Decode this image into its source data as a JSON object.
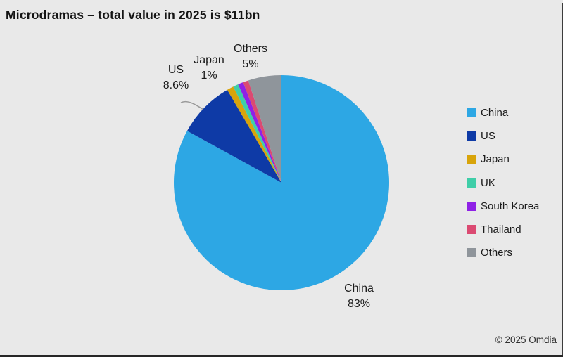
{
  "title": "Microdramas – total value in 2025 is $11bn",
  "copyright": "© 2025 Omdia",
  "chart_data": {
    "type": "pie",
    "title": "Microdramas – total value in 2025 is $11bn",
    "total_value": "$11bn",
    "year": "2025",
    "start_angle_deg": -90,
    "direction": "clockwise",
    "legend_position": "right",
    "series": [
      {
        "name": "China",
        "value": 83,
        "color": "#2DA7E4"
      },
      {
        "name": "US",
        "value": 8.6,
        "color": "#0E3AA6"
      },
      {
        "name": "Japan",
        "value": 1,
        "color": "#D8A40A"
      },
      {
        "name": "UK",
        "value": 0.8,
        "color": "#3FCEA8"
      },
      {
        "name": "South Korea",
        "value": 0.8,
        "color": "#8F21E6"
      },
      {
        "name": "Thailand",
        "value": 0.8,
        "color": "#DB4A72"
      },
      {
        "name": "Others",
        "value": 5,
        "color": "#8F959B"
      }
    ],
    "callouts": {
      "us": {
        "line1": "US",
        "line2": "8.6%"
      },
      "japan": {
        "line1": "Japan",
        "line2": "1%"
      },
      "others": {
        "line1": "Others",
        "line2": "5%"
      },
      "china": {
        "line1": "China",
        "line2": "83%"
      }
    }
  }
}
